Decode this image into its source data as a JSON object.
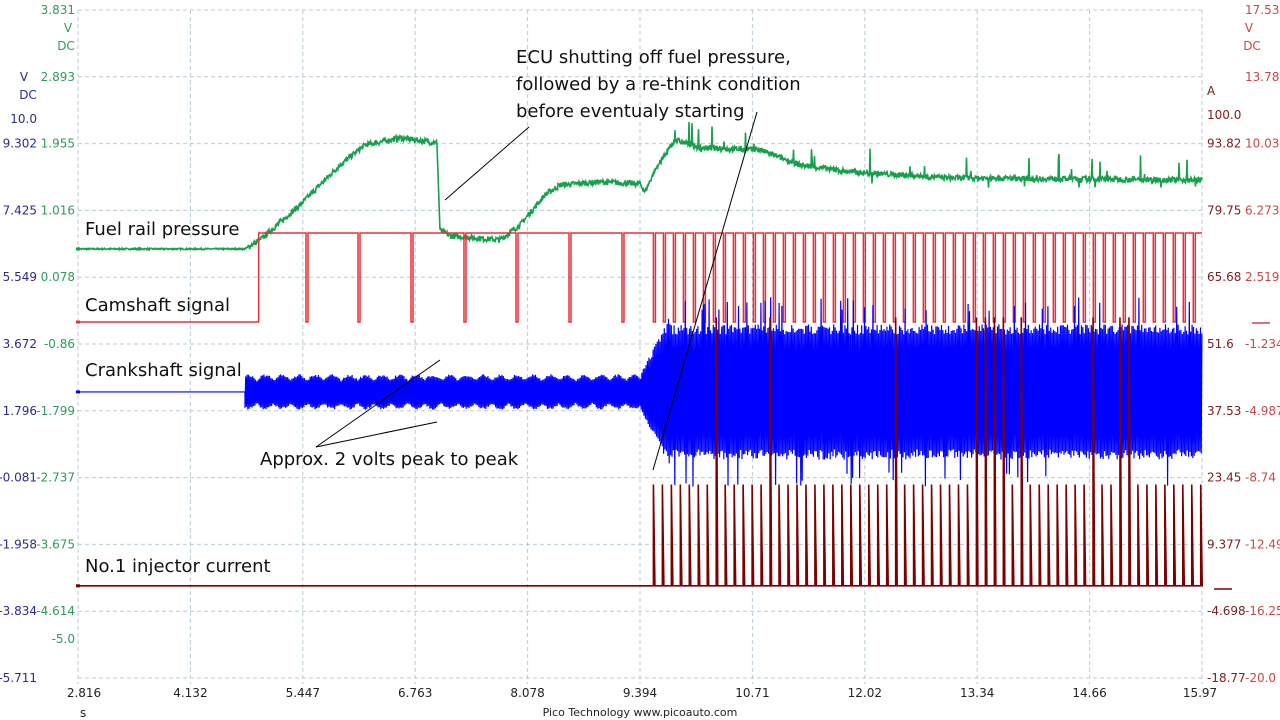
{
  "chart_data": {
    "type": "line",
    "title": "",
    "footer": "Pico Technology   www.picoauto.com",
    "xlabel": "s",
    "xlim": [
      2.816,
      15.97
    ],
    "x_ticks": [
      "2.816",
      "4.132",
      "5.447",
      "6.763",
      "8.078",
      "9.394",
      "10.71",
      "12.02",
      "13.34",
      "14.66",
      "15.97"
    ],
    "grid": true,
    "axes": {
      "green": {
        "unit": "V",
        "coupling": "DC",
        "ylim": [
          -5.551,
          3.831
        ],
        "ticks": [
          "3.831",
          "2.893",
          "1.955",
          "1.016",
          "0.078",
          "-0.86",
          "-1.799",
          "-2.737",
          "-3.675",
          "-4.614"
        ],
        "limit_label": "-5.0",
        "color": "#2f9a5e"
      },
      "blue": {
        "unit": "V",
        "coupling": "DC",
        "ylim": [
          -5.711,
          13.055
        ],
        "ticks": [
          "9.302",
          "7.425",
          "5.549",
          "3.672",
          "1.796",
          "-0.081",
          "-1.958",
          "-3.834",
          "-5.711"
        ],
        "limit_label": "10.0",
        "color": "#2b2b8f"
      },
      "darkred": {
        "unit": "A",
        "ylim": [
          -18.77,
          121.96
        ],
        "ticks": [
          "93.82",
          "79.75",
          "65.68",
          "51.6",
          "37.53",
          "23.45",
          "9.377",
          "-4.698",
          "-18.77"
        ],
        "limit_label": "100.0",
        "color": "#7a2020"
      },
      "red": {
        "unit": "V",
        "coupling": "DC",
        "ylim": [
          -20.0,
          17.53
        ],
        "ticks": [
          "17.53",
          "13.78",
          "10.03",
          "6.273",
          "2.519",
          "-1.234",
          "-4.987",
          "-8.74",
          "-12.49",
          "-16.25",
          "-20.0"
        ],
        "color": "#c9474a"
      }
    },
    "series": [
      {
        "name": "Fuel rail pressure",
        "axis": "green",
        "color": "#16a04c",
        "x": [
          2.816,
          4.77,
          4.946,
          5.414,
          5.882,
          6.175,
          6.584,
          7.017,
          7.052,
          7.169,
          7.755,
          7.989,
          8.281,
          8.457,
          8.925,
          9.393,
          9.451,
          9.569,
          9.803,
          10.095,
          10.797,
          11.265,
          11.85,
          13.021,
          15.97
        ],
        "y": [
          0.475,
          0.475,
          0.602,
          1.093,
          1.655,
          1.936,
          2.034,
          1.964,
          0.742,
          0.658,
          0.602,
          0.812,
          1.234,
          1.374,
          1.416,
          1.388,
          1.276,
          1.585,
          2.006,
          1.894,
          1.866,
          1.655,
          1.557,
          1.472,
          1.444
        ]
      },
      {
        "name": "Camshaft signal",
        "axis": "red",
        "color": "#e8303a",
        "low": 0.0,
        "high": 5.0,
        "rise_time": 4.93,
        "pulse_times": [
          5.484,
          6.093,
          6.713,
          7.333,
          7.942,
          8.562,
          9.182
        ],
        "running_start": 9.55,
        "running_pulse_interval": 0.117
      },
      {
        "name": "Crankshaft signal",
        "axis": "blue",
        "color": "#0000ff",
        "baseline": 2.325,
        "start": 4.77,
        "cranking_amplitude": 0.5,
        "running_start": 9.75,
        "running_amplitude": 1.9
      },
      {
        "name": "No.1 injector current",
        "axis": "darkred",
        "color": "#7b0000",
        "baseline": 0.65,
        "running_start": 9.55,
        "pulse_interval": 0.105,
        "pulse_peak": 22
      }
    ],
    "annotations": [
      {
        "text_lines": [
          "ECU shutting off fuel pressure,",
          "followed by a re-think condition",
          "before eventualy starting"
        ]
      },
      {
        "text": "Approx. 2 volts peak to peak"
      }
    ]
  }
}
